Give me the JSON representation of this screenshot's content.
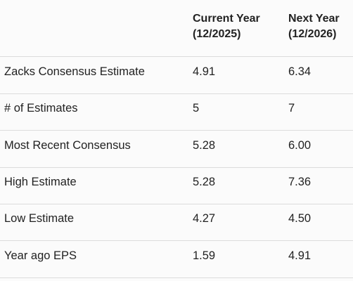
{
  "table": {
    "columns": [
      {
        "title": "Current Year",
        "period": "(12/2025)"
      },
      {
        "title": "Next Year",
        "period": "(12/2026)"
      }
    ],
    "rows": [
      [
        "Zacks Consensus Estimate",
        "4.91",
        "6.34"
      ],
      [
        "# of Estimates",
        "5",
        "7"
      ],
      [
        "Most Recent Consensus",
        "5.28",
        "6.00"
      ],
      [
        "High Estimate",
        "5.28",
        "7.36"
      ],
      [
        "Low Estimate",
        "4.27",
        "4.50"
      ],
      [
        "Year ago EPS",
        "1.59",
        "4.91"
      ]
    ]
  }
}
